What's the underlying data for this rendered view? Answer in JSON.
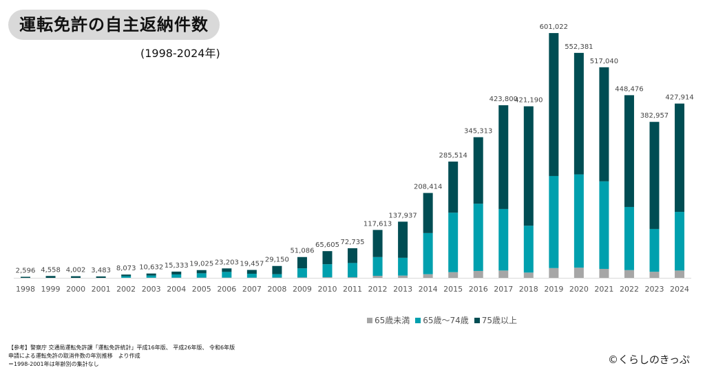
{
  "chart_data": {
    "type": "bar",
    "stacked": true,
    "title": "運転免許の自主返納件数",
    "subtitle": "(1998-2024年)",
    "categories": [
      "1998",
      "1999",
      "2000",
      "2001",
      "2002",
      "2003",
      "2004",
      "2005",
      "2006",
      "2007",
      "2008",
      "2009",
      "2010",
      "2011",
      "2012",
      "2013",
      "2014",
      "2015",
      "2016",
      "2017",
      "2018",
      "2019",
      "2020",
      "2021",
      "2022",
      "2023",
      "2024"
    ],
    "totals": [
      2596,
      4558,
      4002,
      3483,
      8073,
      10632,
      15333,
      19025,
      23203,
      19457,
      29150,
      51086,
      65605,
      72735,
      117613,
      137937,
      208414,
      285514,
      345313,
      423800,
      421190,
      601022,
      552381,
      517040,
      448476,
      382957,
      427914
    ],
    "total_labels": [
      "2,596",
      "4,558",
      "4,002",
      "3,483",
      "8,073",
      "10,632",
      "15,333",
      "19,025",
      "23,203",
      "19,457",
      "29,150",
      "51,086",
      "65,605",
      "72,735",
      "117,613",
      "137,937",
      "208,414",
      "285,514",
      "345,313",
      "423,800",
      "421,190",
      "601,022",
      "552,381",
      "517,040",
      "448,476",
      "382,957",
      "427,914"
    ],
    "series": [
      {
        "name": "65歳未満",
        "color": "#a6a6a6",
        "values": [
          0,
          0,
          0,
          0,
          200,
          300,
          400,
          500,
          600,
          500,
          700,
          1000,
          1500,
          1500,
          5000,
          5600,
          9000,
          14000,
          17000,
          18000,
          13000,
          24000,
          25000,
          22000,
          19000,
          15000,
          18000
        ]
      },
      {
        "name": "65歳～74歳",
        "color": "#00a0ae",
        "values": [
          0,
          0,
          0,
          0,
          4000,
          5500,
          8000,
          10700,
          14000,
          9600,
          8400,
          22500,
          32000,
          35000,
          46000,
          43600,
          101000,
          146000,
          165000,
          151000,
          115000,
          226000,
          229000,
          215000,
          155000,
          105000,
          144000
        ]
      },
      {
        "name": "75歳以上",
        "color": "#004d53",
        "values": [
          2596,
          4558,
          4002,
          3483,
          3873,
          4832,
          6933,
          7825,
          8603,
          9357,
          20050,
          27586,
          32105,
          36235,
          66613,
          88737,
          98414,
          125514,
          163313,
          254800,
          293190,
          351022,
          298381,
          280040,
          274476,
          262957,
          265914
        ]
      }
    ],
    "ylim": [
      0,
      640000
    ],
    "grid": false,
    "legend_position": "bottom"
  },
  "notes": [
    "【参考】警察庁 交通局運転免許課「運転免許統計」平成16年版、 平成26年版、 令和6年版",
    "申請による運転免許の取消件数の年別推移　より作成",
    "＝1998-2001年は年齢別の集計なし"
  ],
  "copyright": "©くらしのきっぷ"
}
